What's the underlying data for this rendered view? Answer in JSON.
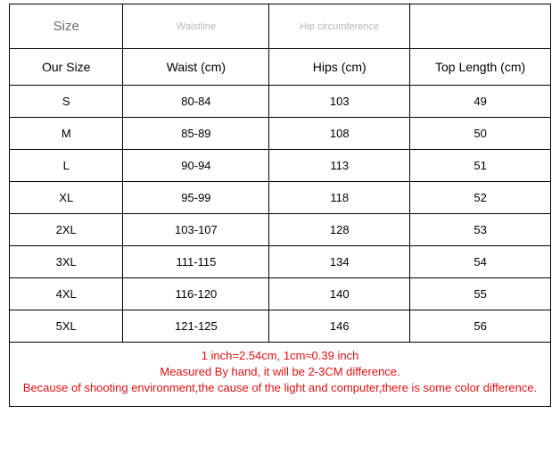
{
  "table": {
    "meta_headers": [
      "Size",
      "Waistline",
      "Hip circumference",
      ""
    ],
    "columns": [
      "Our Size",
      "Waist (cm)",
      "Hips (cm)",
      "Top Length (cm)"
    ],
    "col_widths": [
      "21%",
      "27%",
      "26%",
      "26%"
    ],
    "meta_header_fontsize": 11,
    "meta_header_color": "#b7b7b7",
    "size_meta_fontsize": 15,
    "size_meta_color": "#6b6b6b",
    "header_fontsize": 14,
    "header_color": "#000000",
    "cell_fontsize": 13,
    "cell_color": "#000000",
    "border_color": "#000000",
    "background_color": "#ffffff",
    "rows": [
      [
        "S",
        "80-84",
        "103",
        "49"
      ],
      [
        "M",
        "85-89",
        "108",
        "50"
      ],
      [
        "L",
        "90-94",
        "113",
        "51"
      ],
      [
        "XL",
        "95-99",
        "118",
        "52"
      ],
      [
        "2XL",
        "103-107",
        "128",
        "53"
      ],
      [
        "3XL",
        "111-115",
        "134",
        "54"
      ],
      [
        "4XL",
        "116-120",
        "140",
        "55"
      ],
      [
        "5XL",
        "121-125",
        "146",
        "56"
      ]
    ]
  },
  "notes": {
    "color": "#e11010",
    "fontsize": 13,
    "lines": [
      "1 inch=2.54cm, 1cm≈0.39 inch",
      "Measured By hand, it will be 2-3CM difference.",
      "Because of shooting environment,the cause of the light and computer,there is some color difference."
    ]
  }
}
